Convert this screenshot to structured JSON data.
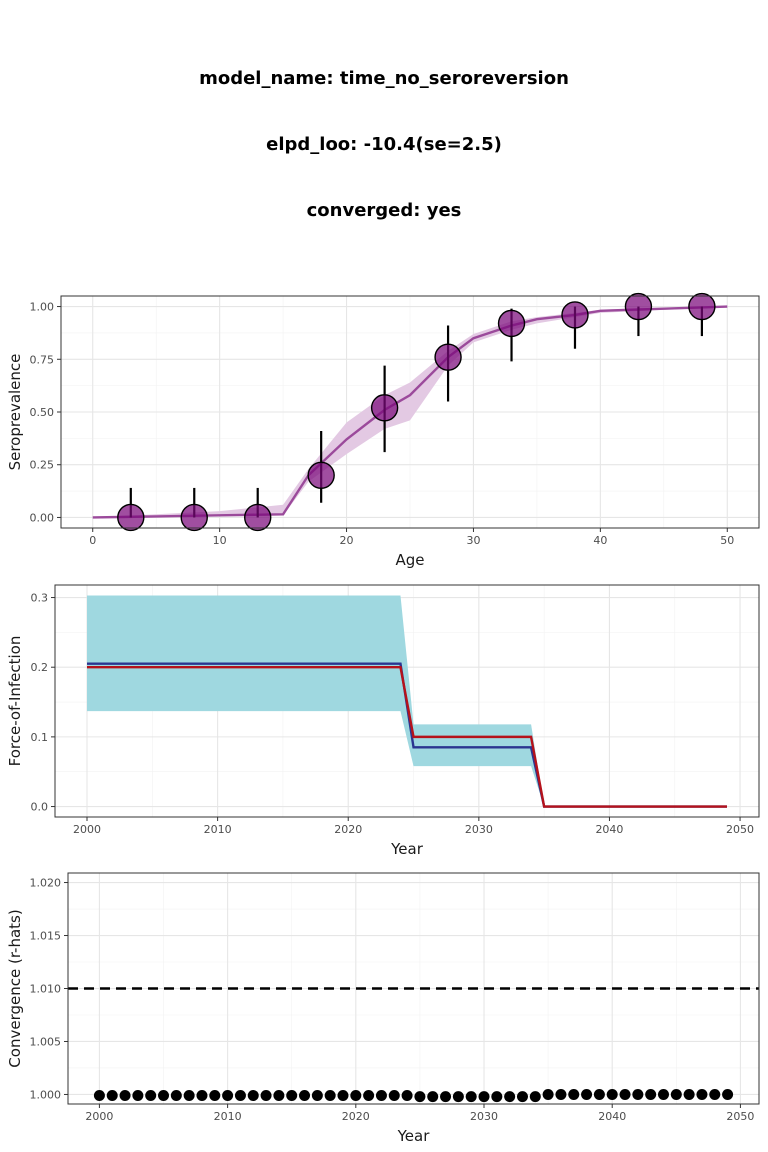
{
  "header": {
    "model_line": "model_name: time_no_seroreversion",
    "elpd_line": "elpd_loo: -10.4(se=2.5)",
    "converged_line": "converged: yes"
  },
  "colors": {
    "sero_line": "#9b4a9b",
    "sero_band": "#e3c9e3",
    "sero_point": "#7b0a7b",
    "foi_band": "#9fd8e0",
    "foi_estimate": "#2b3590",
    "foi_true": "#b5121b",
    "rhat_threshold": "#000000",
    "rhat_point": "#000000"
  },
  "chart_data": [
    {
      "type": "line",
      "xlabel": "Age",
      "ylabel": "Seroprevalence",
      "xlim": [
        -2.5,
        52.5
      ],
      "ylim": [
        -0.05,
        1.05
      ],
      "xticks": [
        "0",
        "10",
        "20",
        "30",
        "40",
        "50"
      ],
      "yticks": [
        "0.00",
        "0.25",
        "0.50",
        "0.75",
        "1.00"
      ],
      "grid": true,
      "fit": {
        "age": [
          0,
          5,
          10,
          15,
          17,
          20,
          23,
          25,
          28,
          30,
          33,
          35,
          38,
          40,
          45,
          50
        ],
        "mean": [
          0.0,
          0.005,
          0.01,
          0.015,
          0.2,
          0.37,
          0.51,
          0.58,
          0.76,
          0.85,
          0.91,
          0.94,
          0.96,
          0.98,
          0.99,
          1.0
        ],
        "lower": [
          0.0,
          0.003,
          0.006,
          0.01,
          0.17,
          0.3,
          0.42,
          0.46,
          0.72,
          0.83,
          0.89,
          0.92,
          0.95,
          0.97,
          0.985,
          0.995
        ],
        "upper": [
          0.0,
          0.015,
          0.03,
          0.06,
          0.23,
          0.45,
          0.58,
          0.64,
          0.79,
          0.87,
          0.93,
          0.95,
          0.97,
          0.985,
          0.995,
          1.0
        ]
      },
      "observed": [
        {
          "age": 3,
          "prevalence": 0.0,
          "lower": 0.0,
          "upper": 0.14
        },
        {
          "age": 8,
          "prevalence": 0.0,
          "lower": 0.0,
          "upper": 0.14
        },
        {
          "age": 13,
          "prevalence": 0.0,
          "lower": 0.0,
          "upper": 0.14
        },
        {
          "age": 18,
          "prevalence": 0.2,
          "lower": 0.07,
          "upper": 0.41
        },
        {
          "age": 23,
          "prevalence": 0.52,
          "lower": 0.31,
          "upper": 0.72
        },
        {
          "age": 28,
          "prevalence": 0.76,
          "lower": 0.55,
          "upper": 0.91
        },
        {
          "age": 33,
          "prevalence": 0.92,
          "lower": 0.74,
          "upper": 0.99
        },
        {
          "age": 38,
          "prevalence": 0.96,
          "lower": 0.8,
          "upper": 1.0
        },
        {
          "age": 43,
          "prevalence": 1.0,
          "lower": 0.86,
          "upper": 1.0
        },
        {
          "age": 48,
          "prevalence": 1.0,
          "lower": 0.86,
          "upper": 1.0
        }
      ]
    },
    {
      "type": "line",
      "xlabel": "Year",
      "ylabel": "Force-of-Infection",
      "xlim": [
        1997.55,
        2051.45
      ],
      "ylim": [
        -0.015,
        0.318
      ],
      "xticks": [
        "2000",
        "2010",
        "2020",
        "2030",
        "2040",
        "2050"
      ],
      "yticks": [
        "0.0",
        "0.1",
        "0.2",
        "0.3"
      ],
      "grid": true,
      "estimate": {
        "year": [
          2000,
          2024,
          2025,
          2034,
          2035,
          2049
        ],
        "mean": [
          0.205,
          0.205,
          0.085,
          0.085,
          0.0,
          0.0
        ],
        "lower": [
          0.137,
          0.137,
          0.058,
          0.058,
          0.0,
          0.0
        ],
        "upper": [
          0.303,
          0.303,
          0.118,
          0.118,
          0.0,
          0.0
        ]
      },
      "true_foi": {
        "year": [
          2000,
          2024,
          2025,
          2034,
          2035,
          2049
        ],
        "value": [
          0.2,
          0.2,
          0.1,
          0.1,
          0.0,
          0.0
        ]
      }
    },
    {
      "type": "scatter",
      "xlabel": "Year",
      "ylabel": "Convergence (r-hats)",
      "xlim": [
        1997.55,
        2051.45
      ],
      "ylim": [
        0.9991,
        1.0209
      ],
      "xticks": [
        "2000",
        "2010",
        "2020",
        "2030",
        "2040",
        "2050"
      ],
      "yticks": [
        "1.000",
        "1.005",
        "1.010",
        "1.015",
        "1.020"
      ],
      "grid": true,
      "threshold": 1.01,
      "x": [
        2000,
        2001,
        2002,
        2003,
        2004,
        2005,
        2006,
        2007,
        2008,
        2009,
        2010,
        2011,
        2012,
        2013,
        2014,
        2015,
        2016,
        2017,
        2018,
        2019,
        2020,
        2021,
        2022,
        2023,
        2024,
        2025,
        2026,
        2027,
        2028,
        2029,
        2030,
        2031,
        2032,
        2033,
        2034,
        2035,
        2036,
        2037,
        2038,
        2039,
        2040,
        2041,
        2042,
        2043,
        2044,
        2045,
        2046,
        2047,
        2048,
        2049
      ],
      "y": [
        0.9999,
        0.9999,
        0.9999,
        0.9999,
        0.9999,
        0.9999,
        0.9999,
        0.9999,
        0.9999,
        0.9999,
        0.9999,
        0.9999,
        0.9999,
        0.9999,
        0.9999,
        0.9999,
        0.9999,
        0.9999,
        0.9999,
        0.9999,
        0.9999,
        0.9999,
        0.9999,
        0.9999,
        0.9999,
        0.9998,
        0.9998,
        0.9998,
        0.9998,
        0.9998,
        0.9998,
        0.9998,
        0.9998,
        0.9998,
        0.9998,
        1.0,
        1.0,
        1.0,
        1.0,
        1.0,
        1.0,
        1.0,
        1.0,
        1.0,
        1.0,
        1.0,
        1.0,
        1.0,
        1.0,
        1.0
      ]
    }
  ]
}
